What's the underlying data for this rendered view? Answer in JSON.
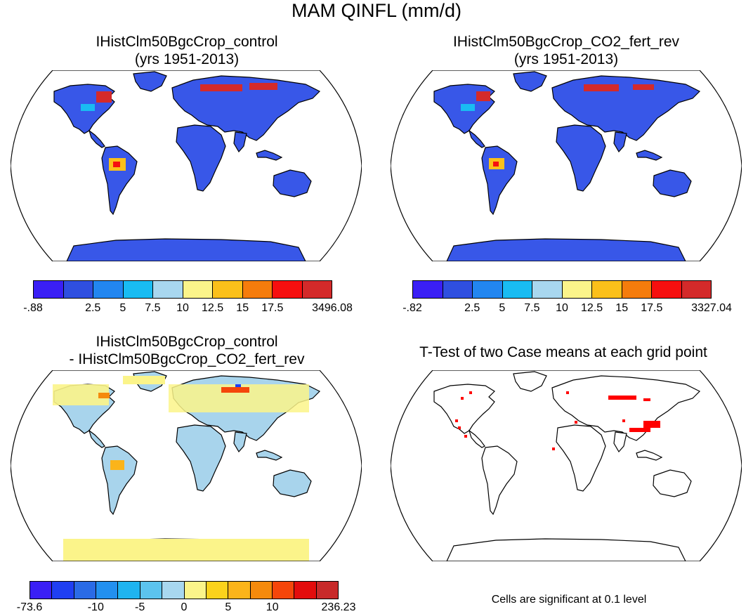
{
  "title": "MAM QINFL (mm/d)",
  "panels": [
    {
      "title_line1": "IHistClm50BgcCrop_control",
      "title_line2": "(yrs 1951-2013)",
      "land_color": "#3857e8",
      "colorbar": {
        "colors": [
          "#3a1ff5",
          "#2f4fe0",
          "#2286f0",
          "#19bcf2",
          "#a8d7ef",
          "#fbf48a",
          "#fbc01a",
          "#f57c0c",
          "#f60f0f",
          "#d42a2a"
        ],
        "labels": [
          "-.88",
          "2.5",
          "5",
          "7.5",
          "10",
          "12.5",
          "15",
          "17.5",
          "3496.08"
        ]
      }
    },
    {
      "title_line1": "IHistClm50BgcCrop_CO2_fert_rev",
      "title_line2": "(yrs 1951-2013)",
      "land_color": "#3857e8",
      "colorbar": {
        "colors": [
          "#3a1ff5",
          "#2f4fe0",
          "#2286f0",
          "#19bcf2",
          "#a8d7ef",
          "#fbf48a",
          "#fbc01a",
          "#f57c0c",
          "#f60f0f",
          "#d42a2a"
        ],
        "labels": [
          "-.82",
          "2.5",
          "5",
          "7.5",
          "10",
          "12.5",
          "15",
          "17.5",
          "3327.04"
        ]
      }
    },
    {
      "title_line1": "IHistClm50BgcCrop_control",
      "title_line2": "- IHistClm50BgcCrop_CO2_fert_rev",
      "land_color": "#a8d4ec",
      "colorbar": {
        "colors": [
          "#3a1ff5",
          "#1f3ff2",
          "#2a6be6",
          "#2290ef",
          "#1fb4f0",
          "#5cc3ee",
          "#a8d7ef",
          "#fbf48a",
          "#fbd21c",
          "#fbb41a",
          "#f58a0c",
          "#f5460a",
          "#e30c0c",
          "#c82a2a"
        ],
        "labels": [
          "-73.6",
          "-10",
          "-5",
          "0",
          "5",
          "10",
          "236.23"
        ]
      }
    },
    {
      "title_line1": "T-Test of two Case means at each grid point",
      "title_line2": "",
      "land_color": "#ffffff",
      "note": "Cells are significant at 0.1 level"
    }
  ]
}
